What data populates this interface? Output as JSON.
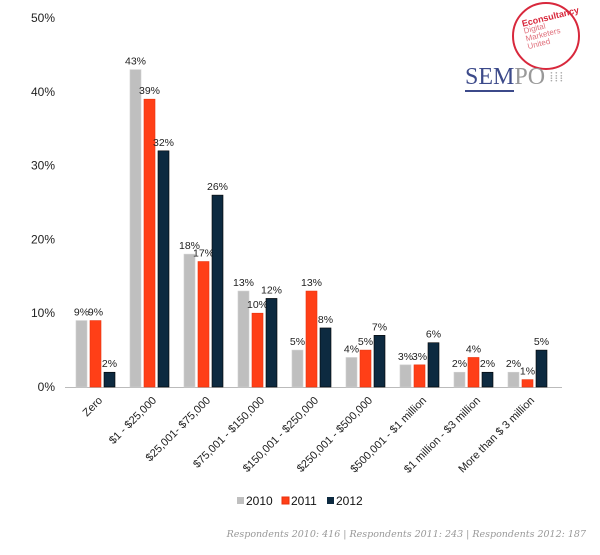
{
  "chart_data": {
    "type": "bar",
    "categories": [
      "Zero",
      "$1 - $25,000",
      "$25,001- $75,000",
      "$75,001 - $150,000",
      "$150,001 - $250,000",
      "$250,001 - $500,000",
      "$500,001 - $1 million",
      "$1 million - $3 million",
      "More than $ 3 million"
    ],
    "series": [
      {
        "name": "2010",
        "color": "#bfbfbf",
        "values": [
          9,
          43,
          18,
          13,
          5,
          4,
          3,
          2,
          2
        ]
      },
      {
        "name": "2011",
        "color": "#ff3f17",
        "values": [
          9,
          39,
          17,
          10,
          13,
          5,
          3,
          4,
          1
        ]
      },
      {
        "name": "2012",
        "color": "#0d2a40",
        "values": [
          2,
          32,
          26,
          12,
          8,
          7,
          6,
          2,
          5
        ]
      }
    ],
    "yticks": [
      "0%",
      "10%",
      "20%",
      "30%",
      "40%",
      "50%"
    ],
    "ylim": [
      0,
      50
    ],
    "grid": false,
    "legend": "bottom",
    "title": "",
    "xlabel": "",
    "ylabel": ""
  },
  "logos": {
    "econsultancy": [
      "Econsultancy",
      "Digital",
      "Marketers",
      "United"
    ],
    "sempo": "SEMPO"
  },
  "footer": "Respondents 2010: 416 | Respondents 2011: 243 | Respondents 2012: 187"
}
